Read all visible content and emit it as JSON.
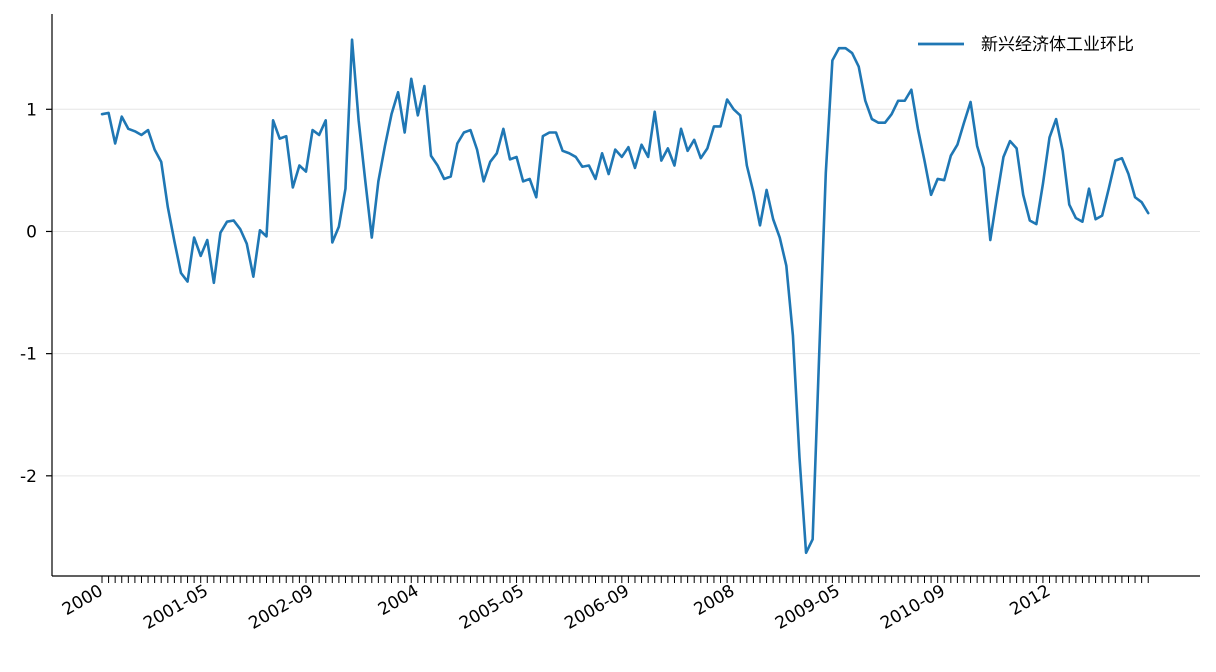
{
  "chart_data": {
    "type": "line",
    "title": "",
    "xlabel": "",
    "ylabel": "",
    "ylim": [
      -2.82,
      1.78
    ],
    "grid": {
      "y": true,
      "x": false
    },
    "legend_position": "top-right",
    "colors": {
      "line": "#1f77b4",
      "grid": "#e5e5e5",
      "axis": "#000000"
    },
    "y_ticks": [
      {
        "value": 1,
        "label": "1"
      },
      {
        "value": 0,
        "label": "0"
      },
      {
        "value": -1,
        "label": "-1"
      },
      {
        "value": -2,
        "label": "-2"
      }
    ],
    "x_ticks": [
      {
        "index": 0,
        "label": "2000"
      },
      {
        "index": 16,
        "label": "2001-05"
      },
      {
        "index": 32,
        "label": "2002-09"
      },
      {
        "index": 48,
        "label": "2004"
      },
      {
        "index": 64,
        "label": "2005-05"
      },
      {
        "index": 80,
        "label": "2006-09"
      },
      {
        "index": 96,
        "label": "2008"
      },
      {
        "index": 112,
        "label": "2009-05"
      },
      {
        "index": 128,
        "label": "2010-09"
      },
      {
        "index": 144,
        "label": "2012"
      }
    ],
    "x": [
      "2000-01",
      "2000-02",
      "2000-03",
      "2000-04",
      "2000-05",
      "2000-06",
      "2000-07",
      "2000-08",
      "2000-09",
      "2000-10",
      "2000-11",
      "2000-12",
      "2001-01",
      "2001-02",
      "2001-03",
      "2001-04",
      "2001-05",
      "2001-06",
      "2001-07",
      "2001-08",
      "2001-09",
      "2001-10",
      "2001-11",
      "2001-12",
      "2002-01",
      "2002-02",
      "2002-03",
      "2002-04",
      "2002-05",
      "2002-06",
      "2002-07",
      "2002-08",
      "2002-09",
      "2002-10",
      "2002-11",
      "2002-12",
      "2003-01",
      "2003-02",
      "2003-03",
      "2003-04",
      "2003-05",
      "2003-06",
      "2003-07",
      "2003-08",
      "2003-09",
      "2003-10",
      "2003-11",
      "2003-12",
      "2004-01",
      "2004-02",
      "2004-03",
      "2004-04",
      "2004-05",
      "2004-06",
      "2004-07",
      "2004-08",
      "2004-09",
      "2004-10",
      "2004-11",
      "2004-12",
      "2005-01",
      "2005-02",
      "2005-03",
      "2005-04",
      "2005-05",
      "2005-06",
      "2005-07",
      "2005-08",
      "2005-09",
      "2005-10",
      "2005-11",
      "2005-12",
      "2006-01",
      "2006-02",
      "2006-03",
      "2006-04",
      "2006-05",
      "2006-06",
      "2006-07",
      "2006-08",
      "2006-09",
      "2006-10",
      "2006-11",
      "2006-12",
      "2007-01",
      "2007-02",
      "2007-03",
      "2007-04",
      "2007-05",
      "2007-06",
      "2007-07",
      "2007-08",
      "2007-09",
      "2007-10",
      "2007-11",
      "2007-12",
      "2008-01",
      "2008-02",
      "2008-03",
      "2008-04",
      "2008-05",
      "2008-06",
      "2008-07",
      "2008-08",
      "2008-09",
      "2008-10",
      "2008-11",
      "2008-12",
      "2009-01",
      "2009-02",
      "2009-03",
      "2009-04",
      "2009-05",
      "2009-06",
      "2009-07",
      "2009-08",
      "2009-09",
      "2009-10",
      "2009-11",
      "2009-12",
      "2010-01",
      "2010-02",
      "2010-03",
      "2010-04",
      "2010-05",
      "2010-06",
      "2010-07",
      "2010-08",
      "2010-09",
      "2010-10",
      "2010-11",
      "2010-12",
      "2011-01",
      "2011-02",
      "2011-03",
      "2011-04",
      "2011-05",
      "2011-06",
      "2011-07",
      "2011-08",
      "2011-09",
      "2011-10",
      "2011-11",
      "2011-12",
      "2012-01",
      "2012-02",
      "2012-03",
      "2012-04",
      "2012-05",
      "2012-06",
      "2012-07",
      "2012-08",
      "2012-09",
      "2012-10",
      "2012-11",
      "2012-12",
      "2013-01",
      "2013-02",
      "2013-03",
      "2013-04"
    ],
    "series": [
      {
        "name": "新兴经济体工业环比",
        "values": [
          0.96,
          0.97,
          0.72,
          0.94,
          0.84,
          0.82,
          0.79,
          0.83,
          0.67,
          0.57,
          0.2,
          -0.08,
          -0.34,
          -0.41,
          -0.05,
          -0.2,
          -0.07,
          -0.42,
          -0.01,
          0.08,
          0.09,
          0.02,
          -0.1,
          -0.37,
          0.01,
          -0.04,
          0.91,
          0.76,
          0.78,
          0.36,
          0.54,
          0.49,
          0.83,
          0.79,
          0.91,
          -0.09,
          0.04,
          0.35,
          1.57,
          0.91,
          0.42,
          -0.05,
          0.41,
          0.7,
          0.96,
          1.14,
          0.81,
          1.25,
          0.95,
          1.19,
          0.62,
          0.54,
          0.43,
          0.45,
          0.72,
          0.81,
          0.83,
          0.67,
          0.41,
          0.57,
          0.64,
          0.84,
          0.59,
          0.61,
          0.41,
          0.43,
          0.28,
          0.78,
          0.81,
          0.81,
          0.66,
          0.64,
          0.61,
          0.53,
          0.54,
          0.43,
          0.64,
          0.47,
          0.67,
          0.61,
          0.69,
          0.52,
          0.71,
          0.61,
          0.98,
          0.58,
          0.68,
          0.54,
          0.84,
          0.66,
          0.75,
          0.6,
          0.68,
          0.86,
          0.86,
          1.08,
          1.0,
          0.95,
          0.54,
          0.32,
          0.05,
          0.34,
          0.1,
          -0.05,
          -0.28,
          -0.85,
          -1.85,
          -2.63,
          -2.52,
          -1.0,
          0.48,
          1.4,
          1.5,
          1.5,
          1.46,
          1.35,
          1.07,
          0.92,
          0.89,
          0.89,
          0.96,
          1.07,
          1.07,
          1.16,
          0.84,
          0.58,
          0.3,
          0.43,
          0.42,
          0.62,
          0.71,
          0.89,
          1.06,
          0.7,
          0.52,
          -0.07,
          0.28,
          0.61,
          0.74,
          0.68,
          0.3,
          0.09,
          0.06,
          0.39,
          0.77,
          0.92,
          0.66,
          0.22,
          0.11,
          0.08,
          0.35,
          0.1,
          0.13,
          0.35,
          0.58,
          0.6,
          0.47,
          0.28,
          0.24,
          0.15
        ]
      }
    ]
  }
}
